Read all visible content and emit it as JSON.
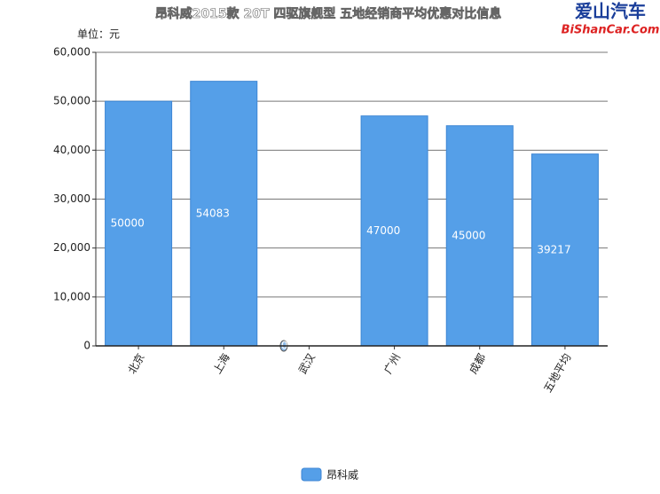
{
  "chart_data": {
    "type": "bar",
    "title": "昂科威2015款 20T 四驱旗舰型 五地经销商平均优惠对比信息",
    "watermark": [
      "爱山汽车",
      "BiShanCar.Com"
    ],
    "unit_label": "单位：元",
    "categories": [
      "北京",
      "上海",
      "武汉",
      "广州",
      "成都",
      "五地平均"
    ],
    "series": [
      {
        "name": "昂科威",
        "color": "#559fe8",
        "values": [
          50000,
          54083,
          0,
          47000,
          45000,
          39217
        ]
      }
    ],
    "ylim": [
      0,
      60000
    ],
    "yticks": [
      0,
      {
        "value": 10000,
        "label": "10,000"
      },
      {
        "value": 20000,
        "label": "20,000"
      },
      {
        "value": 30000,
        "label": "30,000"
      },
      {
        "value": 40000,
        "label": "40,000"
      },
      {
        "value": 50000,
        "label": "50,000"
      },
      {
        "value": 60000,
        "label": "60,000"
      }
    ],
    "grid": true,
    "legend": "bottom"
  }
}
